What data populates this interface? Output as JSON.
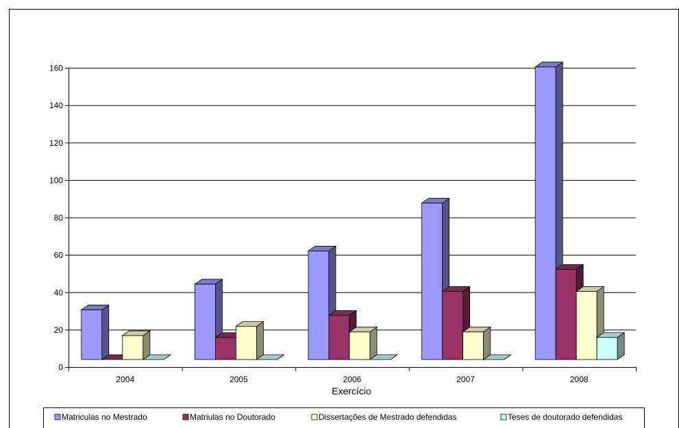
{
  "chart_data": {
    "type": "bar",
    "title": "",
    "xlabel": "Exercício",
    "ylabel": "",
    "ylim": [
      0,
      160
    ],
    "y_ticks": [
      0,
      20,
      40,
      60,
      80,
      100,
      120,
      140,
      160
    ],
    "grid": true,
    "three_d": true,
    "legend_position": "bottom",
    "categories": [
      "2004",
      "2005",
      "2006",
      "2007",
      "2008"
    ],
    "series": [
      {
        "name": "Matriculas no Mestrado",
        "color": "#9999ff",
        "values": [
          27,
          41,
          59,
          85,
          159
        ]
      },
      {
        "name": "Matriulas no Doutorado",
        "color": "#993366",
        "values": [
          0,
          12,
          24,
          37,
          49
        ]
      },
      {
        "name": "Dissertações de Mestrado defendidas",
        "color": "#ffffcc",
        "values": [
          13,
          18,
          15,
          15,
          37
        ]
      },
      {
        "name": "Teses de doutorado defendidas",
        "color": "#ccffff",
        "values": [
          0,
          0,
          0,
          0,
          12
        ]
      }
    ]
  }
}
